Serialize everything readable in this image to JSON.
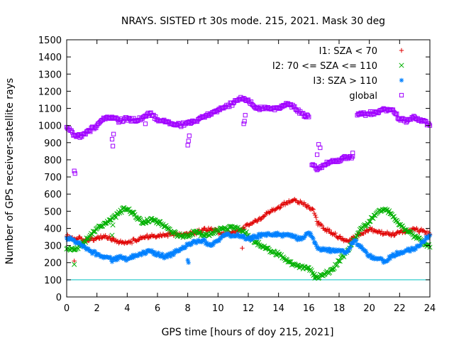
{
  "chart_data": {
    "type": "scatter",
    "title": "NRAYS. SISTED rt 30s mode. 215, 2021. Mask 30 deg",
    "xlabel": "GPS time [hours of doy 215, 2021]",
    "ylabel": "Number of GPS receiver-satellite rays",
    "xlim": [
      0,
      24
    ],
    "ylim": [
      0,
      1500
    ],
    "x_ticks": [
      "0",
      "2",
      "4",
      "6",
      "8",
      "10",
      "12",
      "14",
      "16",
      "18",
      "20",
      "22",
      "24"
    ],
    "y_ticks": [
      "0",
      "100",
      "200",
      "300",
      "400",
      "500",
      "600",
      "700",
      "800",
      "900",
      "1000",
      "1100",
      "1200",
      "1300",
      "1400",
      "1500"
    ],
    "reference_line": {
      "y": 100,
      "color": "#00c0c0"
    },
    "series": [
      {
        "name": "I1: SZA < 70",
        "color": "#e00000",
        "marker": "+",
        "points": [
          [
            0,
            355
          ],
          [
            0.5,
            340
          ],
          [
            1,
            340
          ],
          [
            1.5,
            330
          ],
          [
            2,
            345
          ],
          [
            2.5,
            350
          ],
          [
            3,
            340
          ],
          [
            3.5,
            320
          ],
          [
            4,
            315
          ],
          [
            4.5,
            330
          ],
          [
            5,
            345
          ],
          [
            5.5,
            355
          ],
          [
            6,
            355
          ],
          [
            6.5,
            360
          ],
          [
            7,
            370
          ],
          [
            7.5,
            360
          ],
          [
            8,
            365
          ],
          [
            8.5,
            375
          ],
          [
            9,
            390
          ],
          [
            9.5,
            395
          ],
          [
            10,
            380
          ],
          [
            10.5,
            365
          ],
          [
            11,
            375
          ],
          [
            11.5,
            395
          ],
          [
            12,
            420
          ],
          [
            12.5,
            445
          ],
          [
            13,
            470
          ],
          [
            13.5,
            500
          ],
          [
            14,
            525
          ],
          [
            14.5,
            550
          ],
          [
            15,
            565
          ],
          [
            15.5,
            550
          ],
          [
            16,
            525
          ],
          [
            16.3,
            510
          ],
          [
            16.6,
            430
          ],
          [
            17,
            400
          ],
          [
            17.5,
            375
          ],
          [
            18,
            350
          ],
          [
            18.5,
            330
          ],
          [
            19,
            345
          ],
          [
            19.5,
            370
          ],
          [
            20,
            395
          ],
          [
            20.5,
            380
          ],
          [
            21,
            370
          ],
          [
            21.5,
            365
          ],
          [
            22,
            375
          ],
          [
            22.5,
            385
          ],
          [
            23,
            395
          ],
          [
            23.5,
            385
          ],
          [
            24,
            365
          ]
        ]
      },
      {
        "name": "I2: 70 <= SZA <= 110",
        "color": "#00b000",
        "marker": "x",
        "points": [
          [
            0,
            280
          ],
          [
            0.5,
            275
          ],
          [
            1,
            305
          ],
          [
            1.5,
            350
          ],
          [
            2,
            400
          ],
          [
            2.5,
            430
          ],
          [
            3,
            460
          ],
          [
            3.5,
            490
          ],
          [
            3.8,
            520
          ],
          [
            4,
            510
          ],
          [
            4.5,
            480
          ],
          [
            5,
            430
          ],
          [
            5.5,
            450
          ],
          [
            6,
            440
          ],
          [
            6.5,
            410
          ],
          [
            7,
            375
          ],
          [
            7.5,
            355
          ],
          [
            8,
            360
          ],
          [
            8.5,
            380
          ],
          [
            9,
            360
          ],
          [
            9.5,
            370
          ],
          [
            10,
            390
          ],
          [
            10.5,
            400
          ],
          [
            11,
            405
          ],
          [
            11.5,
            395
          ],
          [
            12,
            360
          ],
          [
            12.5,
            320
          ],
          [
            13,
            290
          ],
          [
            13.5,
            265
          ],
          [
            14,
            250
          ],
          [
            14.5,
            220
          ],
          [
            15,
            190
          ],
          [
            15.5,
            175
          ],
          [
            16,
            170
          ],
          [
            16.5,
            115
          ],
          [
            17,
            130
          ],
          [
            17.5,
            160
          ],
          [
            18,
            210
          ],
          [
            18.5,
            260
          ],
          [
            19,
            330
          ],
          [
            19.5,
            400
          ],
          [
            20,
            440
          ],
          [
            20.5,
            490
          ],
          [
            21,
            510
          ],
          [
            21.5,
            480
          ],
          [
            22,
            420
          ],
          [
            22.5,
            380
          ],
          [
            23,
            355
          ],
          [
            23.5,
            320
          ],
          [
            24,
            290
          ]
        ]
      },
      {
        "name": "I3: SZA > 110",
        "color": "#0080ff",
        "marker": "*",
        "points": [
          [
            0,
            345
          ],
          [
            0.5,
            330
          ],
          [
            1,
            300
          ],
          [
            1.5,
            270
          ],
          [
            2,
            250
          ],
          [
            2.5,
            235
          ],
          [
            3,
            220
          ],
          [
            3.5,
            230
          ],
          [
            4,
            220
          ],
          [
            4.5,
            240
          ],
          [
            5,
            255
          ],
          [
            5.5,
            265
          ],
          [
            6,
            250
          ],
          [
            6.5,
            235
          ],
          [
            7,
            250
          ],
          [
            7.5,
            280
          ],
          [
            8,
            305
          ],
          [
            8.5,
            320
          ],
          [
            9,
            330
          ],
          [
            9.5,
            300
          ],
          [
            10,
            330
          ],
          [
            10.5,
            360
          ],
          [
            11,
            360
          ],
          [
            11.5,
            355
          ],
          [
            12,
            340
          ],
          [
            12.5,
            350
          ],
          [
            13,
            365
          ],
          [
            13.5,
            360
          ],
          [
            14,
            365
          ],
          [
            14.5,
            360
          ],
          [
            15,
            350
          ],
          [
            15.5,
            335
          ],
          [
            16,
            375
          ],
          [
            16.3,
            340
          ],
          [
            16.6,
            280
          ],
          [
            17,
            275
          ],
          [
            17.5,
            270
          ],
          [
            18,
            275
          ],
          [
            18.5,
            260
          ],
          [
            19,
            330
          ],
          [
            19.5,
            290
          ],
          [
            20,
            240
          ],
          [
            20.5,
            220
          ],
          [
            21,
            210
          ],
          [
            21.5,
            240
          ],
          [
            22,
            260
          ],
          [
            22.5,
            270
          ],
          [
            23,
            285
          ],
          [
            23.5,
            320
          ],
          [
            24,
            360
          ]
        ]
      },
      {
        "name": "global",
        "color": "#a000ff",
        "marker": "square",
        "points": [
          [
            0,
            990
          ],
          [
            0.5,
            945
          ],
          [
            1,
            935
          ],
          [
            1.5,
            970
          ],
          [
            2,
            1000
          ],
          [
            2.5,
            1040
          ],
          [
            3,
            1050
          ],
          [
            3.5,
            1025
          ],
          [
            4,
            1040
          ],
          [
            4.5,
            1030
          ],
          [
            5,
            1040
          ],
          [
            5.5,
            1070
          ],
          [
            6,
            1035
          ],
          [
            6.5,
            1020
          ],
          [
            7,
            1010
          ],
          [
            7.5,
            1000
          ],
          [
            8,
            1020
          ],
          [
            8.5,
            1025
          ],
          [
            9,
            1050
          ],
          [
            9.5,
            1070
          ],
          [
            10,
            1090
          ],
          [
            10.5,
            1110
          ],
          [
            11,
            1130
          ],
          [
            11.5,
            1165
          ],
          [
            12,
            1150
          ],
          [
            12.5,
            1100
          ],
          [
            13,
            1100
          ],
          [
            13.5,
            1095
          ],
          [
            14,
            1105
          ],
          [
            14.5,
            1130
          ],
          [
            15,
            1110
          ],
          [
            15.5,
            1070
          ],
          [
            16,
            1050
          ],
          [
            16.2,
            770
          ],
          [
            16.6,
            745
          ],
          [
            17,
            770
          ],
          [
            17.5,
            790
          ],
          [
            18,
            800
          ],
          [
            18.5,
            815
          ],
          [
            18.9,
            820
          ],
          [
            19.2,
            1060
          ],
          [
            19.5,
            1065
          ],
          [
            20,
            1070
          ],
          [
            20.5,
            1080
          ],
          [
            21,
            1095
          ],
          [
            21.5,
            1090
          ],
          [
            22,
            1040
          ],
          [
            22.5,
            1025
          ],
          [
            23,
            1050
          ],
          [
            23.5,
            1030
          ],
          [
            24,
            1000
          ]
        ]
      }
    ],
    "outliers": [
      {
        "series": 0,
        "points": [
          [
            0.5,
            210
          ],
          [
            3,
            330
          ],
          [
            6,
            355
          ],
          [
            11.6,
            285
          ],
          [
            16.6,
            420
          ]
        ]
      },
      {
        "series": 1,
        "points": [
          [
            0.5,
            190
          ],
          [
            3,
            360
          ],
          [
            3.05,
            420
          ],
          [
            16.4,
            110
          ]
        ]
      },
      {
        "series": 2,
        "points": [
          [
            3,
            205
          ],
          [
            8,
            215
          ],
          [
            8.05,
            200
          ]
        ]
      },
      {
        "series": 3,
        "points": [
          [
            0.5,
            735
          ],
          [
            0.55,
            720
          ],
          [
            3,
            920
          ],
          [
            3.05,
            880
          ],
          [
            3.1,
            950
          ],
          [
            5.2,
            1010
          ],
          [
            8,
            885
          ],
          [
            8.05,
            910
          ],
          [
            8.1,
            940
          ],
          [
            11.7,
            1010
          ],
          [
            11.75,
            1025
          ],
          [
            11.8,
            1060
          ],
          [
            16.55,
            830
          ],
          [
            16.65,
            890
          ],
          [
            16.75,
            870
          ],
          [
            18.9,
            840
          ]
        ]
      }
    ]
  }
}
